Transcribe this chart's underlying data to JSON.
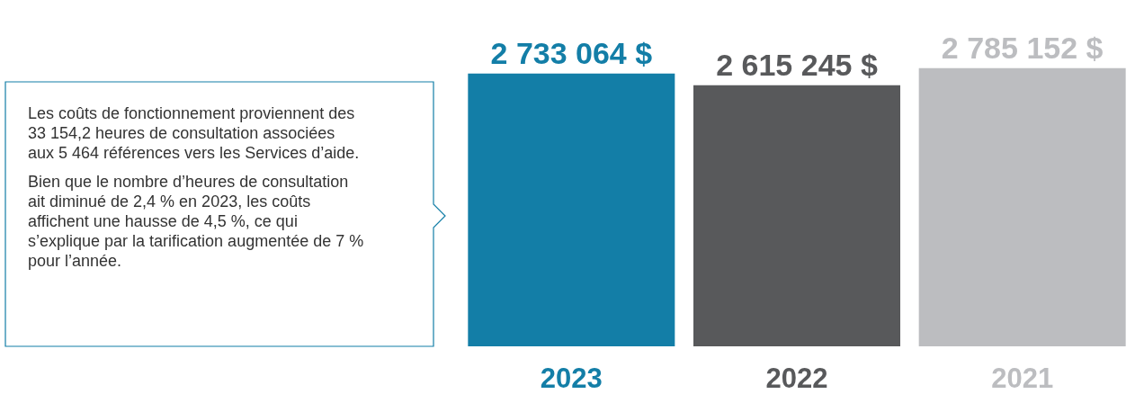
{
  "chart_data": {
    "type": "bar",
    "categories": [
      "2023",
      "2022",
      "2021"
    ],
    "values": [
      2733064,
      2615245,
      2785152
    ],
    "colors": [
      "#137ea7",
      "#58595b",
      "#bcbdc0"
    ],
    "value_labels": [
      "2 733 064 $",
      "2 615 245 $",
      "2 785 152 $"
    ],
    "annotations": [
      "Les coûts de fonctionnement proviennent des 33 154,2 heures de consultation associées aux 5 464 références vers les Services d’aide.",
      "Bien que le nombre d’heures de consultation ait diminué de 2,4 % en 2023, les coûts affichent une hausse de 4,5 %, ce qui s’explique par la tarification augmentée de 7 % pour l’année."
    ],
    "orientation": "vertical"
  }
}
